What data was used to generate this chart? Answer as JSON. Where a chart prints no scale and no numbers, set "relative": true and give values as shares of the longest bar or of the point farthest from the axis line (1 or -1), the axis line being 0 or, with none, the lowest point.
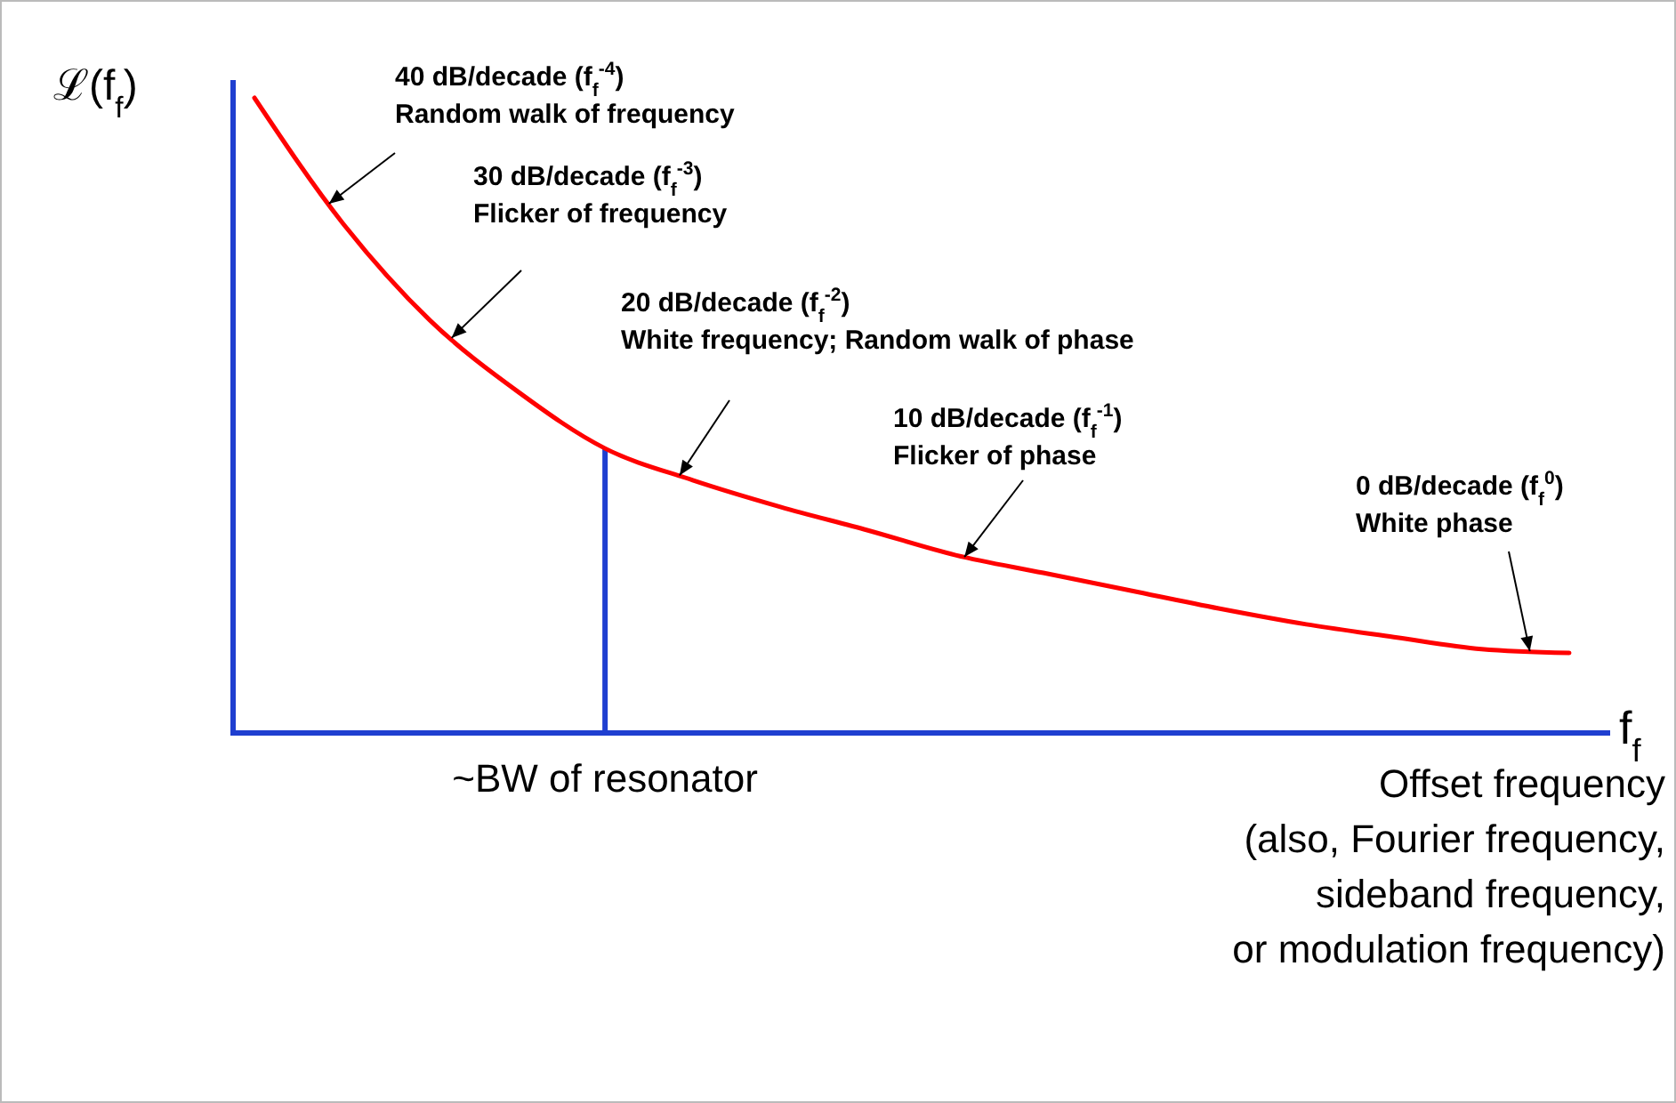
{
  "chart_data": {
    "type": "line",
    "relative": true,
    "categories": [
      null,
      null,
      null,
      null,
      null,
      null,
      null,
      null,
      null,
      null,
      null,
      null,
      null,
      null,
      null,
      null
    ],
    "series": [
      {
        "color": "#ff0000",
        "values": [
          1,
          0.804,
          0.65,
          0.538,
          0.448,
          0.398,
          0.356,
          0.319,
          0.28,
          0.252,
          0.224,
          0.196,
          0.171,
          0.151,
          0.132,
          0.126
        ]
      }
    ],
    "ylabel": "ℒ(f$_{f}$)",
    "xlabel": "f$_{f}$",
    "annotations": [
      "~BW of resonator",
      "40 dB/decade (f$_{f}$$^{-4}$)\nRandom walk of frequency",
      "30 dB/decade (f$_{f}$$^{-3}$)\nFlicker of frequency",
      "20 dB/decade (f$_{f}$$^{-2}$)\nWhite frequency; Random walk of phase",
      "10 dB/decade (f$_{f}$$^{-1}$)\nFlicker of phase",
      "0 dB/decade (f$_{f}$$^{0}$)\nWhite phase",
      "Offset frequency\n(also, Fourier frequency,\nsideband frequency,\nor modulation frequency)"
    ]
  }
}
